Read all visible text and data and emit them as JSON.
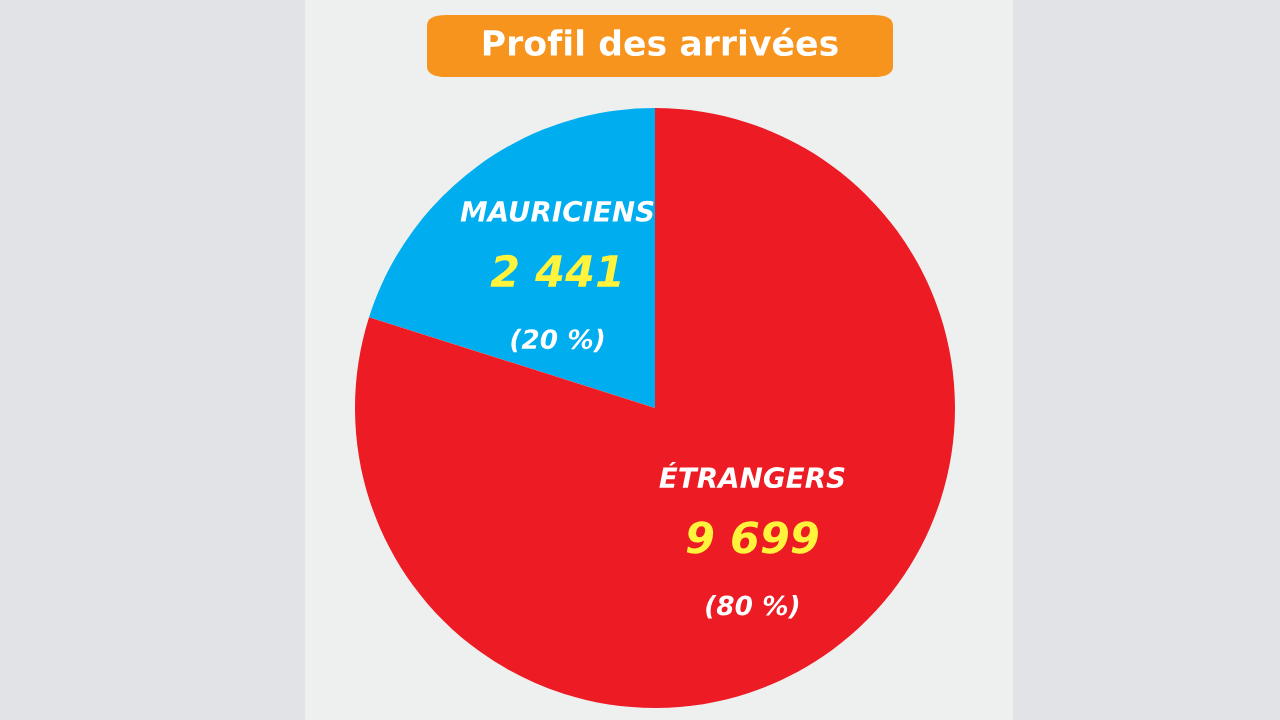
{
  "chart_data": {
    "type": "pie",
    "title": "Profil des arrivées",
    "categories": [
      "MAURICIENS",
      "ÉTRANGERS"
    ],
    "values": [
      2441,
      9699
    ],
    "colors": [
      "#00aeef",
      "#ed1c24"
    ],
    "value_labels": [
      "2 441\n(20 %)",
      "9 699\n(80 %)"
    ]
  }
}
